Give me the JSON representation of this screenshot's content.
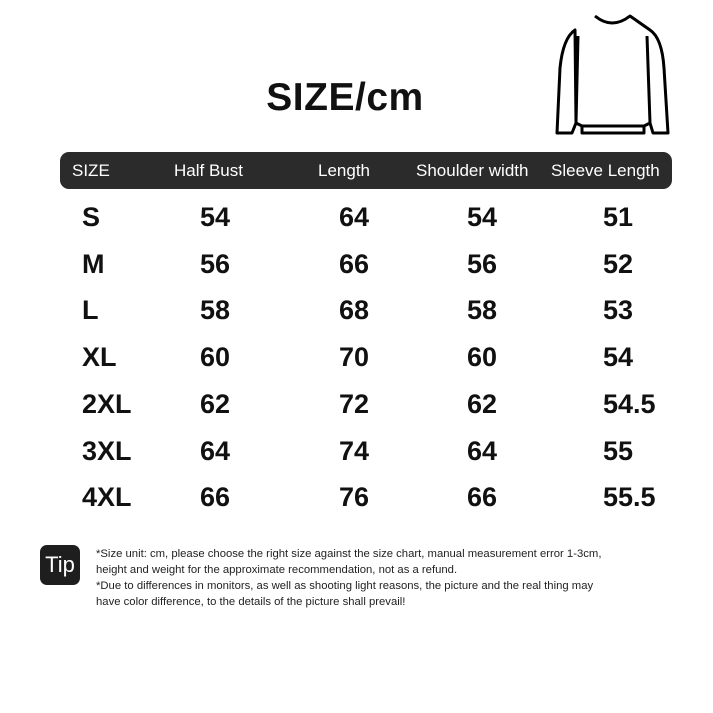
{
  "title": "SIZE/cm",
  "headers": [
    "SIZE",
    "Half Bust",
    "Length",
    "Shoulder width",
    "Sleeve Length"
  ],
  "rows": [
    [
      "S",
      "54",
      "64",
      "54",
      "51"
    ],
    [
      "M",
      "56",
      "66",
      "56",
      "52"
    ],
    [
      "L",
      "58",
      "68",
      "58",
      "53"
    ],
    [
      "XL",
      "60",
      "70",
      "60",
      "54"
    ],
    [
      "2XL",
      "62",
      "72",
      "62",
      "54.5"
    ],
    [
      "3XL",
      "64",
      "74",
      "64",
      "55"
    ],
    [
      "4XL",
      "66",
      "76",
      "66",
      "55.5"
    ]
  ],
  "tip": {
    "label": "Tip",
    "lines": [
      "*Size unit: cm, please choose the right size against the size chart, manual measurement error 1-3cm,",
      "height and weight for the approximate recommendation, not as a refund.",
      "*Due to differences in monitors, as well as shooting light reasons, the picture and the real thing may",
      "have color difference, to the details of the picture shall prevail!"
    ]
  },
  "icons": {
    "garment": "sweatshirt-outline-icon"
  }
}
